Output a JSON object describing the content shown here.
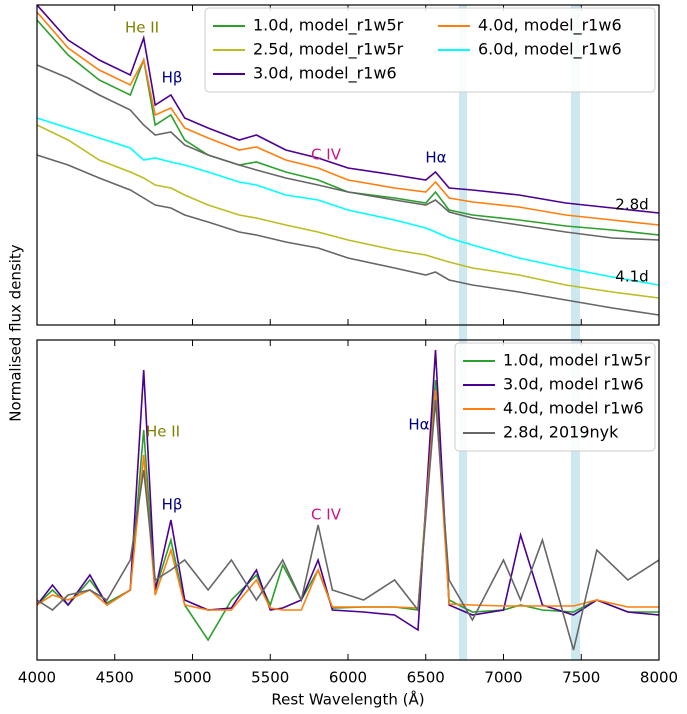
{
  "chart_data": [
    {
      "type": "line",
      "ylabel": "Normalised flux density",
      "xticklabels": false,
      "xlim": [
        4000,
        8000
      ],
      "ylim": [
        0,
        3.2
      ],
      "xticks": [
        4000,
        4500,
        5000,
        5500,
        6000,
        6500,
        7000,
        7500,
        8000
      ],
      "legend": {
        "corner": "upper right",
        "columns": 2
      },
      "x": [
        4000,
        4200,
        4400,
        4600,
        4686,
        4760,
        4861,
        4950,
        5100,
        5300,
        5411,
        5600,
        5808,
        6000,
        6300,
        6500,
        6563,
        6650,
        6800,
        7100,
        7400,
        7700,
        8000
      ],
      "series": [
        {
          "name": "1.0d, model_r1w5r",
          "color": "#2ca02c",
          "values": [
            3.05,
            2.7,
            2.45,
            2.3,
            2.65,
            2.0,
            2.1,
            1.85,
            1.7,
            1.6,
            1.63,
            1.53,
            1.45,
            1.33,
            1.27,
            1.22,
            1.33,
            1.15,
            1.1,
            1.05,
            0.99,
            0.95,
            0.9
          ]
        },
        {
          "name": "2.5d, model_r1w5r",
          "color": "#bcbd22",
          "values": [
            2.0,
            1.85,
            1.65,
            1.53,
            1.47,
            1.4,
            1.37,
            1.3,
            1.2,
            1.1,
            1.07,
            1.0,
            0.93,
            0.85,
            0.75,
            0.7,
            0.67,
            0.63,
            0.57,
            0.5,
            0.4,
            0.33,
            0.27
          ]
        },
        {
          "name": "3.0d, model_r1w6",
          "color": "#4b0092",
          "values": [
            3.2,
            2.85,
            2.65,
            2.5,
            2.87,
            2.2,
            2.3,
            2.07,
            1.97,
            1.85,
            1.9,
            1.75,
            1.67,
            1.57,
            1.5,
            1.45,
            1.53,
            1.37,
            1.35,
            1.3,
            1.22,
            1.17,
            1.12
          ]
        },
        {
          "name": "4.0d, model_r1w6",
          "color": "#ff7f0e",
          "values": [
            3.13,
            2.77,
            2.55,
            2.4,
            2.65,
            2.1,
            2.17,
            1.97,
            1.87,
            1.75,
            1.78,
            1.65,
            1.57,
            1.45,
            1.37,
            1.33,
            1.43,
            1.27,
            1.23,
            1.18,
            1.1,
            1.05,
            1.0
          ]
        },
        {
          "name": "6.0d, model_r1w6",
          "color": "#00ffff",
          "values": [
            2.07,
            1.97,
            1.87,
            1.77,
            1.65,
            1.67,
            1.63,
            1.6,
            1.53,
            1.43,
            1.4,
            1.3,
            1.25,
            1.15,
            1.05,
            0.97,
            0.93,
            0.87,
            0.8,
            0.67,
            0.57,
            0.48,
            0.4
          ]
        },
        {
          "color": "#666666",
          "values": [
            2.6,
            2.47,
            2.3,
            2.15,
            2.0,
            1.9,
            1.93,
            1.8,
            1.7,
            1.6,
            1.55,
            1.47,
            1.4,
            1.33,
            1.25,
            1.2,
            1.25,
            1.13,
            1.07,
            1.0,
            0.93,
            0.87,
            0.85
          ]
        },
        {
          "color": "#666666",
          "values": [
            1.7,
            1.6,
            1.47,
            1.35,
            1.27,
            1.2,
            1.17,
            1.1,
            1.03,
            0.93,
            0.9,
            0.83,
            0.77,
            0.67,
            0.57,
            0.5,
            0.53,
            0.45,
            0.4,
            0.33,
            0.25,
            0.17,
            0.1
          ]
        }
      ],
      "annotations": [
        {
          "text": "He II",
          "color": "#808000"
        },
        {
          "text": "Hβ",
          "color": "#000080"
        },
        {
          "text": "C IV",
          "color": "#c71585"
        },
        {
          "text": "Hα",
          "color": "#000080"
        },
        {
          "text": "2.8d",
          "color": "#000000"
        },
        {
          "text": "4.1d",
          "color": "#000000"
        }
      ]
    },
    {
      "type": "line",
      "xlabel": "Rest Wavelength (Å)",
      "xlim": [
        4000,
        8000
      ],
      "ylim": [
        0,
        3.2
      ],
      "xticks": [
        4000,
        4500,
        5000,
        5500,
        6000,
        6500,
        7000,
        7500,
        8000
      ],
      "legend": {
        "corner": "upper right",
        "columns": 1
      },
      "x": [
        4000,
        4100,
        4200,
        4340,
        4450,
        4600,
        4686,
        4760,
        4861,
        4950,
        5100,
        5250,
        5411,
        5500,
        5580,
        5700,
        5808,
        5900,
        6100,
        6300,
        6450,
        6563,
        6650,
        6800,
        7000,
        7110,
        7250,
        7450,
        7600,
        7800,
        8000
      ],
      "series": [
        {
          "name": "1.0d, model r1w5r",
          "color": "#2ca02c",
          "values": [
            0.55,
            0.7,
            0.55,
            0.8,
            0.57,
            0.7,
            2.3,
            0.7,
            1.2,
            0.55,
            0.2,
            0.6,
            0.85,
            0.55,
            0.95,
            0.6,
            0.9,
            0.52,
            0.53,
            0.53,
            0.5,
            2.8,
            0.6,
            0.48,
            0.5,
            0.55,
            0.5,
            0.48,
            0.6,
            0.48,
            0.48
          ]
        },
        {
          "name": "3.0d, model r1w6",
          "color": "#4b0092",
          "values": [
            0.55,
            0.75,
            0.55,
            0.85,
            0.55,
            0.7,
            2.9,
            0.7,
            1.4,
            0.6,
            0.5,
            0.52,
            0.9,
            0.5,
            0.52,
            0.6,
            1.0,
            0.5,
            0.48,
            0.45,
            0.3,
            3.1,
            0.55,
            0.45,
            0.5,
            1.25,
            0.55,
            0.45,
            0.6,
            0.48,
            0.45
          ]
        },
        {
          "name": "4.0d, model r1w6",
          "color": "#ff7f0e",
          "values": [
            0.55,
            0.65,
            0.6,
            0.7,
            0.55,
            0.7,
            2.05,
            0.65,
            1.1,
            0.55,
            0.5,
            0.5,
            0.8,
            0.52,
            0.5,
            0.5,
            0.9,
            0.53,
            0.53,
            0.53,
            0.52,
            2.7,
            0.56,
            0.55,
            0.54,
            0.54,
            0.54,
            0.54,
            0.6,
            0.53,
            0.53
          ]
        },
        {
          "name": "2.8d, 2019nyk",
          "color": "#666666",
          "values": [
            0.6,
            0.5,
            0.65,
            0.7,
            0.6,
            1.0,
            1.9,
            0.8,
            0.9,
            1.0,
            0.7,
            1.0,
            0.6,
            0.8,
            1.0,
            0.6,
            1.35,
            0.7,
            0.6,
            0.8,
            0.5,
            2.6,
            0.8,
            0.4,
            1.0,
            0.6,
            1.2,
            0.1,
            1.1,
            0.8,
            1.0
          ]
        }
      ],
      "annotations": [
        {
          "text": "He II",
          "color": "#808000"
        },
        {
          "text": "Hβ",
          "color": "#000080"
        },
        {
          "text": "C IV",
          "color": "#c71585"
        },
        {
          "text": "Hα",
          "color": "#000080"
        }
      ]
    }
  ]
}
